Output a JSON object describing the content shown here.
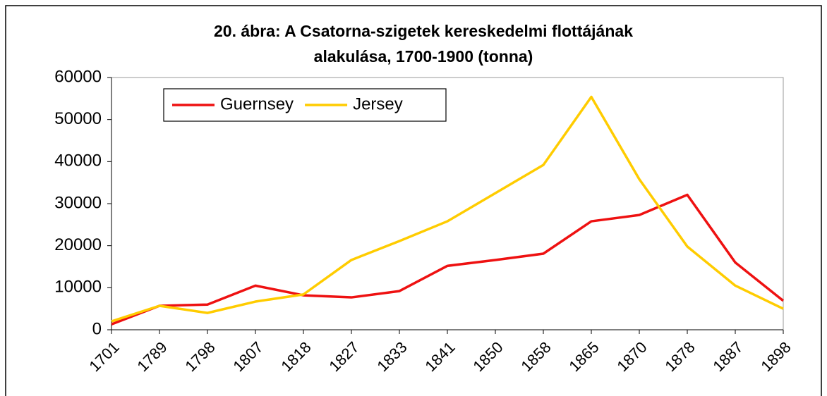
{
  "chart_data": {
    "type": "line",
    "title": [
      "20. ábra: A Csatorna-szigetek kereskedelmi flottájának",
      "alakulása, 1700-1900 (tonna)"
    ],
    "categories": [
      "1701",
      "1789",
      "1798",
      "1807",
      "1818",
      "1827",
      "1833",
      "1841",
      "1850",
      "1858",
      "1865",
      "1870",
      "1878",
      "1887",
      "1898"
    ],
    "series": [
      {
        "name": "Guernsey",
        "color": "#ee1111",
        "values": [
          1300,
          5700,
          6000,
          10500,
          8200,
          7700,
          9200,
          15200,
          16600,
          18100,
          25800,
          27300,
          32100,
          16000,
          6900
        ]
      },
      {
        "name": "Jersey",
        "color": "#ffcc00",
        "values": [
          2000,
          5700,
          4000,
          6700,
          8400,
          16600,
          21100,
          25800,
          32500,
          39200,
          55400,
          35800,
          19800,
          10500,
          5000
        ]
      }
    ],
    "ylim": [
      0,
      60000
    ],
    "yticks": [
      0,
      10000,
      20000,
      30000,
      40000,
      50000,
      60000
    ],
    "legend": "upper left"
  }
}
